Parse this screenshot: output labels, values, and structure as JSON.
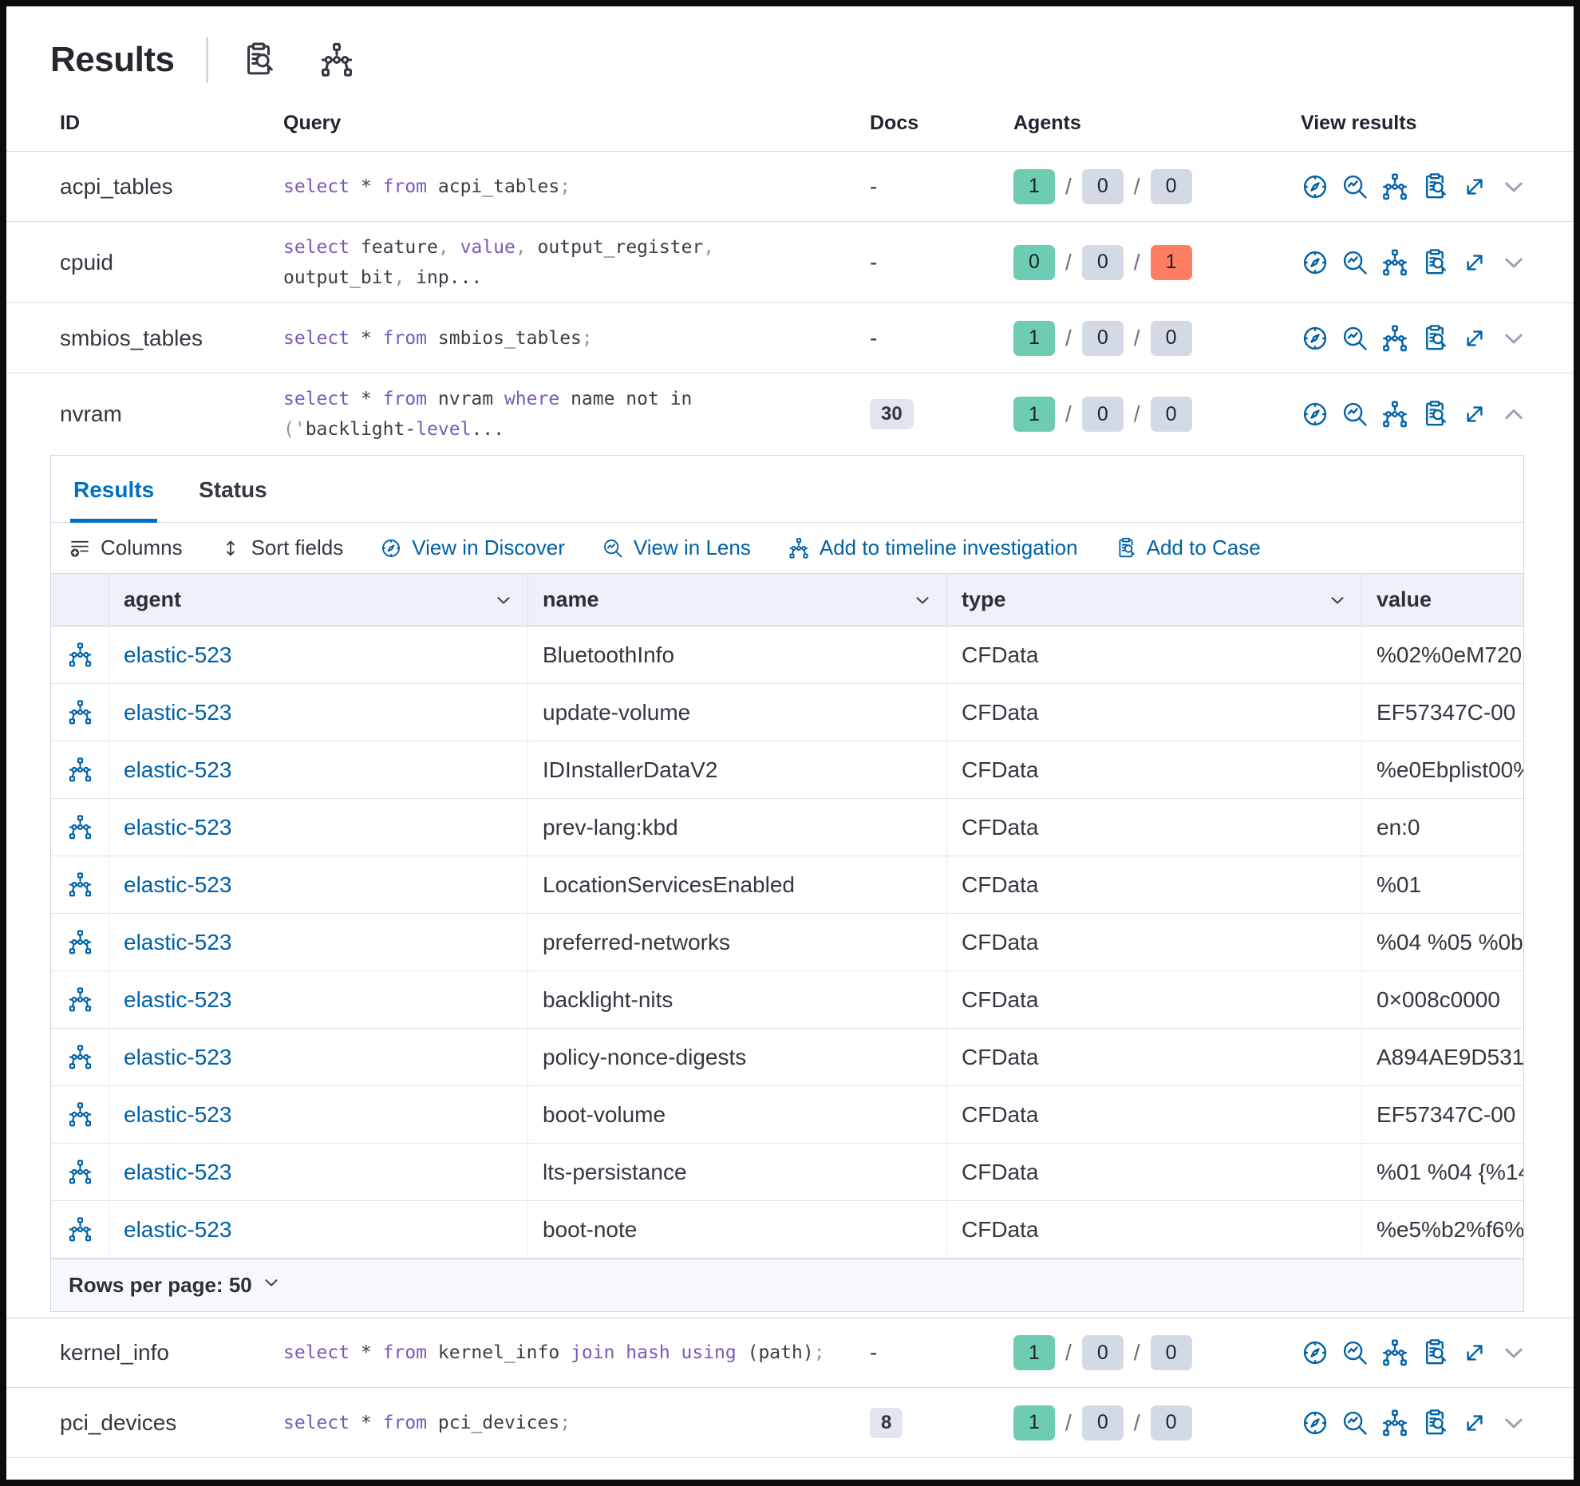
{
  "colors": {
    "link_blue": "#0061a6",
    "tab_blue": "#0071c2",
    "keyword_purple": "#7b59b8",
    "punct_gray": "#8c93a2",
    "badge_green": "#6dccb1",
    "badge_gray": "#d3dae6",
    "badge_red": "#ff7e62",
    "text_dark": "#343741"
  },
  "header": {
    "title": "Results",
    "icons": [
      {
        "name": "inspect"
      },
      {
        "name": "timeline"
      }
    ]
  },
  "queries_table": {
    "columns": {
      "id": "ID",
      "query": "Query",
      "docs": "Docs",
      "agents": "Agents",
      "view_results": "View results"
    },
    "row_actions": [
      "discover",
      "lens",
      "timeline",
      "inspect",
      "expand"
    ],
    "rows": [
      {
        "id": "acpi_tables",
        "docs": "-",
        "docs_badge": false,
        "expanded": false,
        "agents": {
          "success": 1,
          "not_sent": 0,
          "failed": 0
        },
        "query": [
          [
            "select",
            "kw"
          ],
          [
            " * ",
            ""
          ],
          [
            "from",
            "kw"
          ],
          [
            " acpi_tables",
            ""
          ],
          [
            ";",
            "p"
          ]
        ]
      },
      {
        "id": "cpuid",
        "docs": "-",
        "docs_badge": false,
        "expanded": false,
        "agents": {
          "success": 0,
          "not_sent": 0,
          "failed": 1
        },
        "query": [
          [
            "select",
            "kw"
          ],
          [
            " feature",
            ""
          ],
          [
            ",",
            "p"
          ],
          [
            " ",
            ""
          ],
          [
            "value",
            "kw"
          ],
          [
            ",",
            "p"
          ],
          [
            " output_register",
            ""
          ],
          [
            ",",
            "p"
          ],
          [
            "\noutput_bit",
            ""
          ],
          [
            ",",
            "p"
          ],
          [
            " inp...",
            ""
          ]
        ]
      },
      {
        "id": "smbios_tables",
        "docs": "-",
        "docs_badge": false,
        "expanded": false,
        "agents": {
          "success": 1,
          "not_sent": 0,
          "failed": 0
        },
        "query": [
          [
            "select",
            "kw"
          ],
          [
            " * ",
            ""
          ],
          [
            "from",
            "kw"
          ],
          [
            " smbios_tables",
            ""
          ],
          [
            ";",
            "p"
          ]
        ]
      },
      {
        "id": "nvram",
        "docs": "30",
        "docs_badge": true,
        "expanded": true,
        "agents": {
          "success": 1,
          "not_sent": 0,
          "failed": 0
        },
        "query": [
          [
            "select",
            "kw"
          ],
          [
            " * ",
            ""
          ],
          [
            "from",
            "kw"
          ],
          [
            " nvram ",
            ""
          ],
          [
            "where",
            "kw"
          ],
          [
            " name not in\n",
            ""
          ],
          [
            "('",
            "p"
          ],
          [
            "backlight-",
            ""
          ],
          [
            "level",
            "kw"
          ],
          [
            "...",
            ""
          ]
        ]
      },
      {
        "id": "kernel_info",
        "docs": "-",
        "docs_badge": false,
        "expanded": false,
        "agents": {
          "success": 1,
          "not_sent": 0,
          "failed": 0
        },
        "query": [
          [
            "select",
            "kw"
          ],
          [
            " * ",
            ""
          ],
          [
            "from",
            "kw"
          ],
          [
            " kernel_info ",
            ""
          ],
          [
            "join hash using",
            "kw"
          ],
          [
            " (path)",
            ""
          ],
          [
            ";",
            "p"
          ]
        ]
      },
      {
        "id": "pci_devices",
        "docs": "8",
        "docs_badge": true,
        "expanded": false,
        "agents": {
          "success": 1,
          "not_sent": 0,
          "failed": 0
        },
        "query": [
          [
            "select",
            "kw"
          ],
          [
            " * ",
            ""
          ],
          [
            "from",
            "kw"
          ],
          [
            " pci_devices",
            ""
          ],
          [
            ";",
            "p"
          ]
        ]
      }
    ]
  },
  "results_panel": {
    "tabs": [
      {
        "label": "Results",
        "active": true
      },
      {
        "label": "Status",
        "active": false
      }
    ],
    "toolbar": [
      {
        "label": "Columns",
        "icon": "columns",
        "style": "dark"
      },
      {
        "label": "Sort fields",
        "icon": "sort",
        "style": "dark"
      },
      {
        "label": "View in Discover",
        "icon": "discover",
        "style": "blue"
      },
      {
        "label": "View in Lens",
        "icon": "lens",
        "style": "blue"
      },
      {
        "label": "Add to timeline investigation",
        "icon": "timeline",
        "style": "blue"
      },
      {
        "label": "Add to Case",
        "icon": "inspect",
        "style": "blue"
      }
    ],
    "grid": {
      "columns": [
        {
          "label": "agent",
          "sortable": true
        },
        {
          "label": "name",
          "sortable": true
        },
        {
          "label": "type",
          "sortable": true
        },
        {
          "label": "value",
          "sortable": false
        }
      ],
      "rows": [
        {
          "agent": "elastic-523",
          "name": "BluetoothInfo",
          "type": "CFData",
          "value": "%02%0eM720"
        },
        {
          "agent": "elastic-523",
          "name": "update-volume",
          "type": "CFData",
          "value": "EF57347C-00"
        },
        {
          "agent": "elastic-523",
          "name": "IDInstallerDataV2",
          "type": "CFData",
          "value": "%e0Ebplist00%"
        },
        {
          "agent": "elastic-523",
          "name": "prev-lang:kbd",
          "type": "CFData",
          "value": "en:0"
        },
        {
          "agent": "elastic-523",
          "name": "LocationServicesEnabled",
          "type": "CFData",
          "value": "%01"
        },
        {
          "agent": "elastic-523",
          "name": "preferred-networks",
          "type": "CFData",
          "value": "%04 %05 %0b"
        },
        {
          "agent": "elastic-523",
          "name": "backlight-nits",
          "type": "CFData",
          "value": "0×008c0000"
        },
        {
          "agent": "elastic-523",
          "name": "policy-nonce-digests",
          "type": "CFData",
          "value": "A894AE9D531"
        },
        {
          "agent": "elastic-523",
          "name": "boot-volume",
          "type": "CFData",
          "value": "EF57347C-00"
        },
        {
          "agent": "elastic-523",
          "name": "lts-persistance",
          "type": "CFData",
          "value": "%01 %04 {%14"
        },
        {
          "agent": "elastic-523",
          "name": "boot-note",
          "type": "CFData",
          "value": "%e5%b2%f6%"
        }
      ]
    },
    "footer": {
      "rows_per_page_label": "Rows per page: 50"
    }
  }
}
